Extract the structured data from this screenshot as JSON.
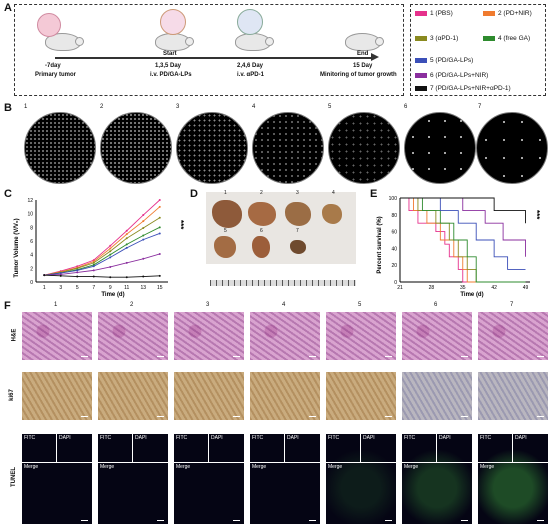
{
  "panels": {
    "A": "A",
    "B": "B",
    "C": "C",
    "D": "D",
    "E": "E",
    "F": "F"
  },
  "timeline": {
    "t1": "-7day",
    "t1b": "Primary tumor",
    "t2a": "Start",
    "t2": "1,3,5 Day",
    "t2b": "i.v. PD/GA-LPs",
    "t3": "2,4,6 Day",
    "t3b": "i.v. αPD-1",
    "t4a": "End",
    "t4": "15 Day",
    "t4b": "Minitoring of tumor growth"
  },
  "legend": [
    {
      "label": "1 (PBS)",
      "color": "#e6318c"
    },
    {
      "label": "2 (PD+NIR)",
      "color": "#f07b2f"
    },
    {
      "label": "3 (αPD-1)",
      "color": "#8a8a1f"
    },
    {
      "label": "4 (free GA)",
      "color": "#2e8b2e"
    },
    {
      "label": "5 (PD/GA-LPs)",
      "color": "#3b4fb8"
    },
    {
      "label": "6 (PD/GA-LPs+NIR)",
      "color": "#8a2e9e"
    },
    {
      "label": "7 (PD/GA-LPs+NIR+αPD-1)",
      "color": "#111111"
    }
  ],
  "groups": [
    "1",
    "2",
    "3",
    "4",
    "5",
    "6",
    "7"
  ],
  "chart_data": [
    {
      "type": "line",
      "ylabel": "Tumor Volume (V/V₀)",
      "xlabel": "Time (d)",
      "x": [
        1,
        3,
        5,
        7,
        9,
        11,
        13,
        15
      ],
      "xlim": [
        0,
        16
      ],
      "ylim": [
        0,
        12
      ],
      "yticks": [
        0,
        2,
        4,
        6,
        8,
        10,
        12
      ],
      "series": [
        {
          "name": "1 (PBS)",
          "values": [
            1,
            1.6,
            2.3,
            3.2,
            5.3,
            7.5,
            9.8,
            12.0
          ]
        },
        {
          "name": "2 (PD+NIR)",
          "values": [
            1,
            1.5,
            2.1,
            3.0,
            4.9,
            7.0,
            8.9,
            11.0
          ]
        },
        {
          "name": "3 (αPD-1)",
          "values": [
            1,
            1.4,
            2.0,
            2.8,
            4.5,
            6.4,
            7.9,
            9.4
          ]
        },
        {
          "name": "4 (free GA)",
          "values": [
            1,
            1.3,
            1.8,
            2.5,
            4.0,
            5.5,
            6.8,
            8.0
          ]
        },
        {
          "name": "5 (PD/GA-LPs)",
          "values": [
            1,
            1.3,
            1.7,
            2.3,
            3.6,
            5.0,
            6.2,
            7.1
          ]
        },
        {
          "name": "6 (PD/GA-LPs+NIR)",
          "values": [
            1,
            1.1,
            1.4,
            1.7,
            2.2,
            2.8,
            3.4,
            4.1
          ]
        },
        {
          "name": "7 (PD/GA-LPs+NIR+αPD-1)",
          "values": [
            1,
            0.9,
            0.8,
            0.8,
            0.7,
            0.7,
            0.8,
            0.9
          ]
        }
      ],
      "significance": "***"
    },
    {
      "type": "line",
      "ylabel": "Percent survival (%)",
      "xlabel": "Time (d)",
      "xticks": [
        21,
        28,
        35,
        42,
        49
      ],
      "yticks": [
        0,
        20,
        40,
        60,
        80,
        100
      ],
      "xlim": [
        21,
        50
      ],
      "ylim": [
        0,
        100
      ],
      "series": [
        {
          "name": "1 (PBS)",
          "steps": [
            [
              21,
              100
            ],
            [
              23,
              85
            ],
            [
              25,
              70
            ],
            [
              29,
              60
            ],
            [
              31,
              45
            ],
            [
              32,
              30
            ],
            [
              34,
              15
            ],
            [
              35,
              0
            ]
          ]
        },
        {
          "name": "2 (PD+NIR)",
          "steps": [
            [
              21,
              100
            ],
            [
              24,
              85
            ],
            [
              27,
              70
            ],
            [
              30,
              50
            ],
            [
              33,
              30
            ],
            [
              35,
              15
            ],
            [
              36,
              0
            ]
          ]
        },
        {
          "name": "3 (αPD-1)",
          "steps": [
            [
              21,
              100
            ],
            [
              25,
              85
            ],
            [
              29,
              70
            ],
            [
              32,
              50
            ],
            [
              34,
              30
            ],
            [
              36,
              15
            ],
            [
              38,
              0
            ]
          ]
        },
        {
          "name": "4 (free GA)",
          "steps": [
            [
              21,
              100
            ],
            [
              26,
              85
            ],
            [
              30,
              70
            ],
            [
              33,
              50
            ],
            [
              36,
              30
            ],
            [
              38,
              0
            ]
          ]
        },
        {
          "name": "5 (PD/GA-LPs)",
          "steps": [
            [
              21,
              100
            ],
            [
              30,
              85
            ],
            [
              34,
              70
            ],
            [
              38,
              50
            ],
            [
              42,
              30
            ],
            [
              45,
              15
            ]
          ]
        },
        {
          "name": "6 (PD/GA-LPs+NIR)",
          "steps": [
            [
              21,
              100
            ],
            [
              35,
              85
            ],
            [
              40,
              70
            ],
            [
              44,
              50
            ],
            [
              49,
              30
            ]
          ]
        },
        {
          "name": "7 (PD/GA-LPs+NIR+αPD-1)",
          "steps": [
            [
              21,
              100
            ],
            [
              42,
              85
            ],
            [
              49,
              70
            ]
          ]
        }
      ],
      "significance": "***"
    }
  ],
  "rowlabels": {
    "he": "H&E",
    "ki67": "ki67",
    "tunel": "TUNEL"
  },
  "tunel": {
    "fitc": "FITC",
    "dapi": "DAPI",
    "merge": "Merge"
  }
}
